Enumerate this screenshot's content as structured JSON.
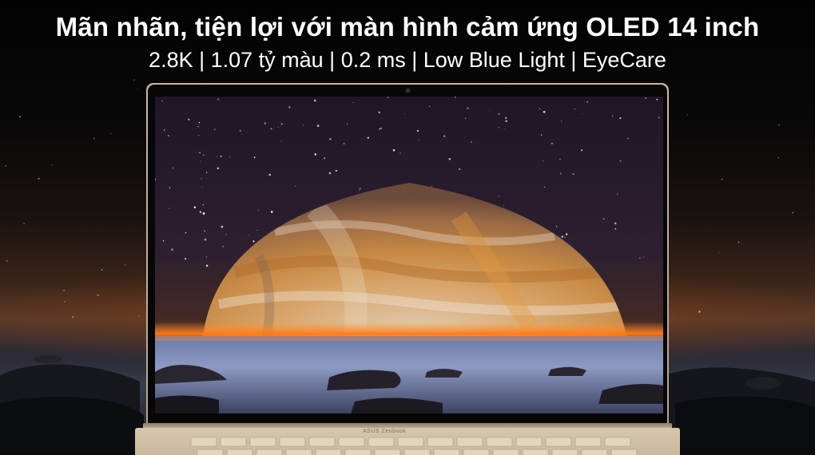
{
  "headline": "Mãn nhãn, tiện lợi với màn hình cảm ứng OLED 14 inch",
  "subline": "2.8K | 1.07 tỷ màu | 0.2 ms | Low Blue Light | EyeCare",
  "laptop": {
    "deck_logo": "ASUS Zenbook"
  },
  "colors": {
    "text": "#ffffff",
    "laptop_body": "#c9b9a3",
    "horizon_glow": "#ff7a1a",
    "sky": "#2a1e2e"
  },
  "scene": {
    "wallpaper": "Jupiter-like planet rising over a misty rocky sea at night",
    "background": "dark starry sky with orange horizon and rocky shoreline"
  }
}
